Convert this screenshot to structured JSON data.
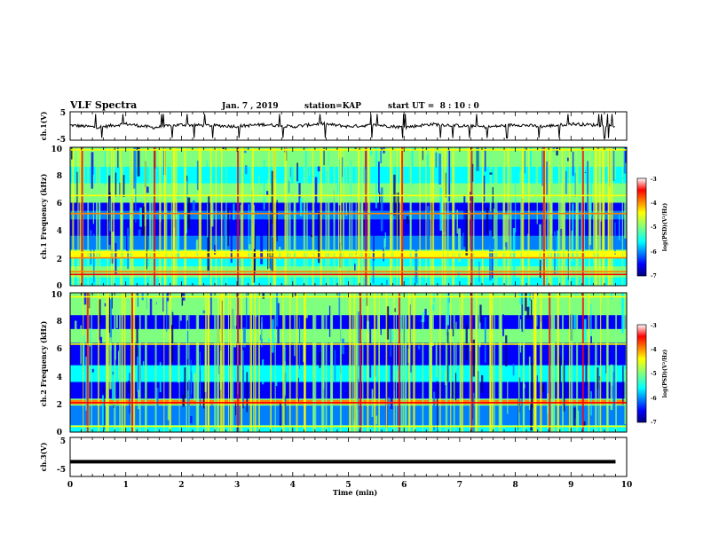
{
  "header": {
    "title": "VLF Spectra",
    "date": "Jan. 7 , 2019",
    "station": "station=KAP",
    "start_ut": "start UT =  8 : 10 : 0"
  },
  "chart_data": [
    {
      "type": "line",
      "panel": "ch1-waveform",
      "ylabel": "ch.1(V)",
      "ylim": [
        -5,
        5
      ],
      "yticks": [
        "5",
        "-5"
      ],
      "xlim": [
        0,
        10
      ],
      "series": [
        {
          "x": [
            0,
            0.5,
            1,
            1.5,
            2,
            2.5,
            3,
            3.5,
            4,
            4.5,
            5,
            5.5,
            6,
            6.5,
            7,
            7.5,
            8,
            8.5,
            9,
            9.5,
            9.8
          ],
          "values": [
            0.3,
            -0.5,
            0.8,
            -0.6,
            0.5,
            0.2,
            -0.1,
            0.6,
            -0.3,
            0.9,
            -0.2,
            0.4,
            -0.5,
            0.7,
            0.1,
            -0.4,
            0.5,
            -0.2,
            0.8,
            0.3,
            0.0
          ]
        }
      ]
    },
    {
      "type": "heatmap",
      "panel": "ch1-spectrogram",
      "ylabel": "ch.1 Frequency (kHz)",
      "xlim": [
        0,
        10
      ],
      "ylim": [
        0,
        10
      ],
      "yticks": [
        "0",
        "2",
        "4",
        "6",
        "8",
        "10"
      ],
      "colorbar": {
        "label": "log(PSD)(V²/Hz)",
        "range": [
          -7,
          -3
        ],
        "ticks": [
          "-3",
          "-4",
          "-5",
          "-6",
          "-7"
        ]
      }
    },
    {
      "type": "heatmap",
      "panel": "ch2-spectrogram",
      "ylabel": "ch.2 Frequency (kHz)",
      "xlim": [
        0,
        10
      ],
      "ylim": [
        0,
        10
      ],
      "yticks": [
        "0",
        "2",
        "4",
        "6",
        "8",
        "10"
      ],
      "colorbar": {
        "label": "log(PSD)(V²/Hz)",
        "range": [
          -7,
          -3
        ],
        "ticks": [
          "-3",
          "-4",
          "-5",
          "-6",
          "-7"
        ]
      }
    },
    {
      "type": "line",
      "panel": "ch3-waveform",
      "ylabel": "ch.3(V)",
      "ylim": [
        -5,
        5
      ],
      "yticks": [
        "5",
        "-5"
      ],
      "xlim": [
        0,
        10
      ],
      "series": [
        {
          "x": [
            0,
            9.8
          ],
          "values": [
            -1.5,
            -1.5
          ]
        }
      ]
    }
  ],
  "xaxis": {
    "label": "Time (min)",
    "ticks": [
      "0",
      "1",
      "2",
      "3",
      "4",
      "5",
      "6",
      "7",
      "8",
      "9",
      "10"
    ]
  },
  "colors": {
    "jet": [
      "#00007f",
      "#0000ff",
      "#007fff",
      "#00ffff",
      "#7fff7f",
      "#ffff00",
      "#ff7f00",
      "#ff0000",
      "#7f0000"
    ],
    "trace": "#000000"
  }
}
